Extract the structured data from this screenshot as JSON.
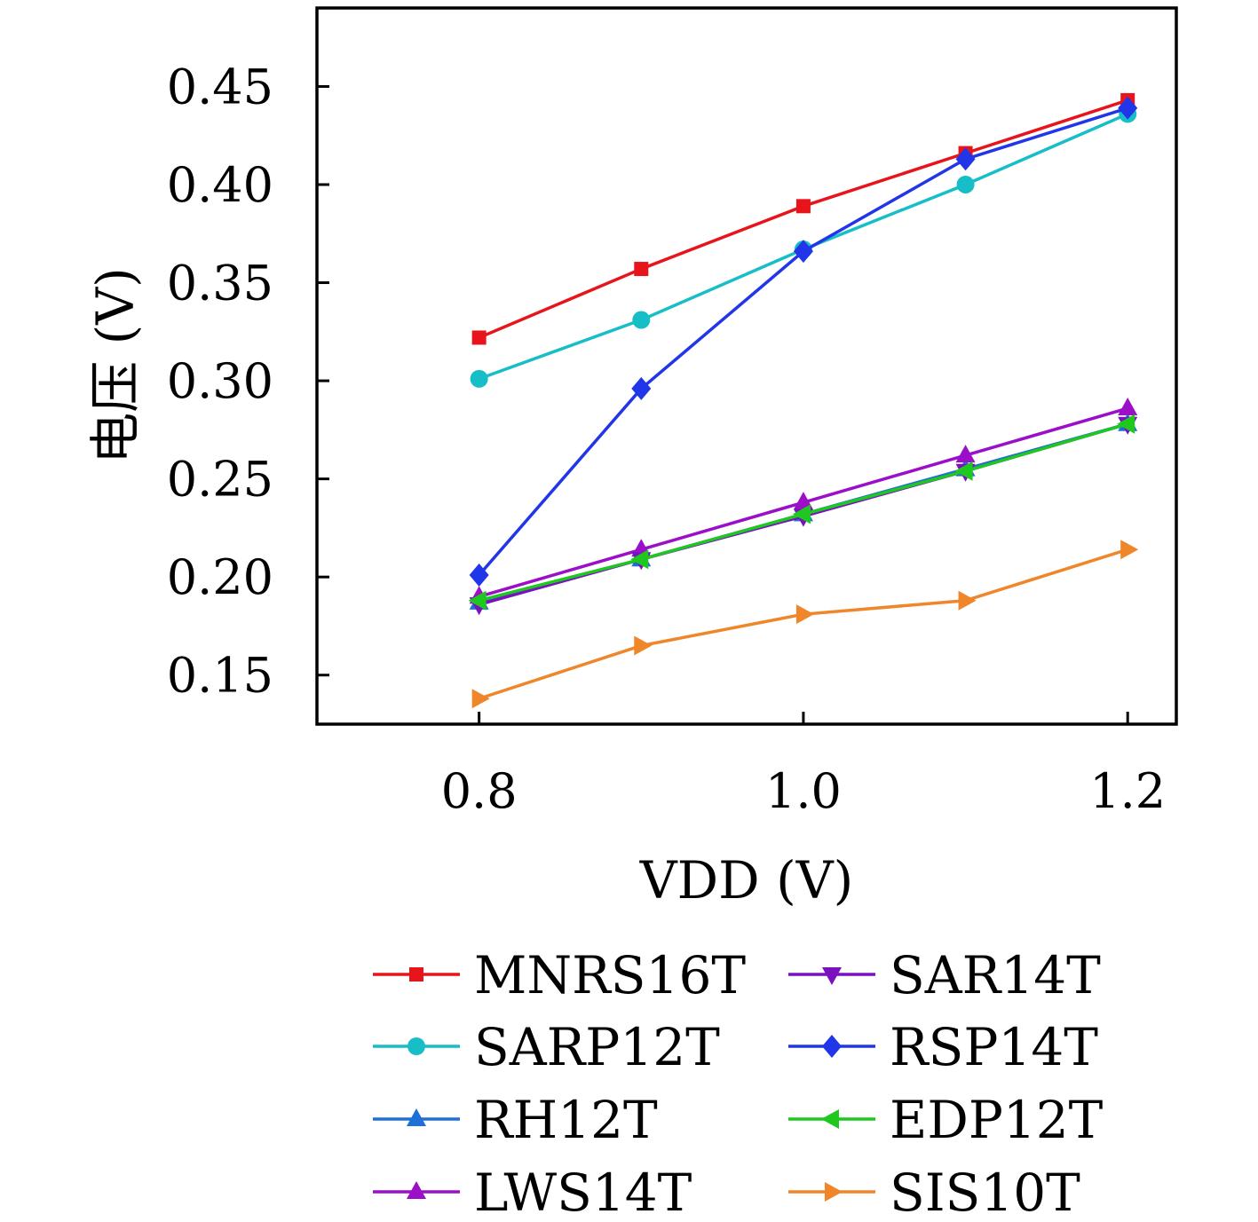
{
  "chart_data": {
    "type": "line",
    "title": "",
    "xlabel": "VDD (V)",
    "ylabel": "电压 (V)",
    "xlim": [
      0.7,
      1.23
    ],
    "ylim": [
      0.125,
      0.49
    ],
    "x_ticks": [
      0.8,
      1.0,
      1.2
    ],
    "x_tick_labels": [
      "0.8",
      "1.0",
      "1.2"
    ],
    "y_ticks": [
      0.15,
      0.2,
      0.25,
      0.3,
      0.35,
      0.4,
      0.45
    ],
    "y_tick_labels": [
      "0.15",
      "0.20",
      "0.25",
      "0.30",
      "0.35",
      "0.40",
      "0.45"
    ],
    "grid": false,
    "legend_position": "bottom",
    "x": [
      0.8,
      0.9,
      1.0,
      1.1,
      1.2
    ],
    "series": [
      {
        "name": "MNRS16T",
        "color": "#e8141c",
        "marker": "square",
        "values": [
          0.322,
          0.357,
          0.389,
          0.416,
          0.443
        ]
      },
      {
        "name": "SARP12T",
        "color": "#17bec8",
        "marker": "circle",
        "values": [
          0.301,
          0.331,
          0.367,
          0.4,
          0.436
        ]
      },
      {
        "name": "RH12T",
        "color": "#1f6fd8",
        "marker": "triangle-up",
        "values": [
          0.187,
          0.209,
          0.232,
          0.255,
          0.278
        ]
      },
      {
        "name": "LWS14T",
        "color": "#9b0fc9",
        "marker": "triangle-up",
        "values": [
          0.19,
          0.214,
          0.238,
          0.262,
          0.286
        ]
      },
      {
        "name": "SAR14T",
        "color": "#7a10c0",
        "marker": "triangle-down",
        "values": [
          0.186,
          0.209,
          0.231,
          0.254,
          0.278
        ]
      },
      {
        "name": "RSP14T",
        "color": "#2136e8",
        "marker": "diamond",
        "values": [
          0.201,
          0.296,
          0.366,
          0.413,
          0.439
        ]
      },
      {
        "name": "EDP12T",
        "color": "#1ec81e",
        "marker": "triangle-left",
        "values": [
          0.188,
          0.209,
          0.232,
          0.254,
          0.278
        ]
      },
      {
        "name": "SIS10T",
        "color": "#f0862a",
        "marker": "triangle-right",
        "values": [
          0.138,
          0.165,
          0.181,
          0.188,
          0.214
        ]
      }
    ],
    "legend_columns": [
      [
        "MNRS16T",
        "SARP12T",
        "RH12T",
        "LWS14T"
      ],
      [
        "SAR14T",
        "RSP14T",
        "EDP12T",
        "SIS10T"
      ]
    ]
  }
}
